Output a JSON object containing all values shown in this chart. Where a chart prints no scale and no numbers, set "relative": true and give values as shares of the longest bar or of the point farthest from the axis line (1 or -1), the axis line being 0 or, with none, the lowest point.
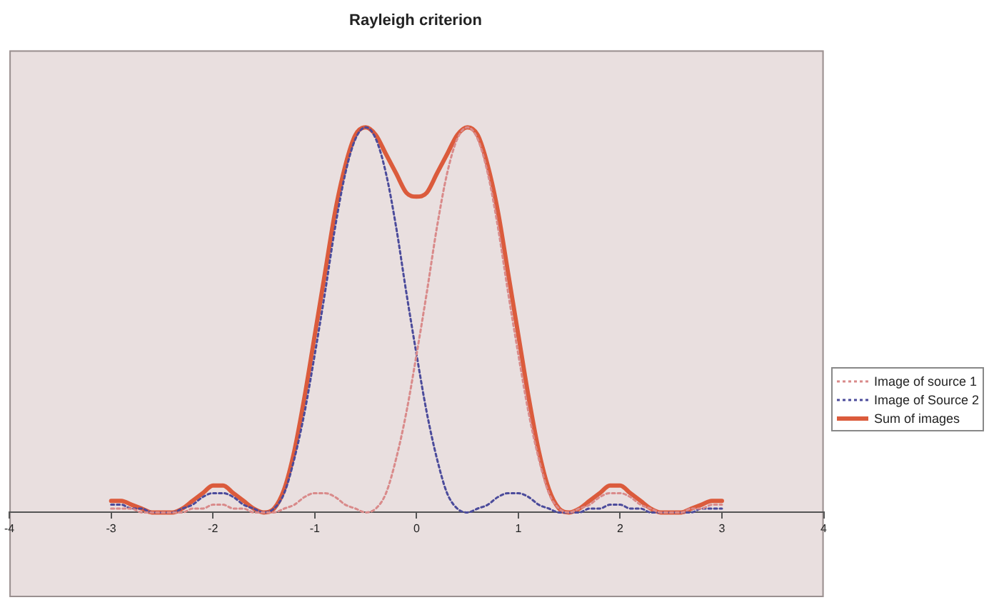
{
  "chart_data": {
    "type": "line",
    "title": "Rayleigh criterion",
    "relative": true,
    "x": [
      -3,
      -2.9,
      -2.8,
      -2.7,
      -2.6,
      -2.5,
      -2.4,
      -2.3,
      -2.2,
      -2.1,
      -2,
      -1.9,
      -1.8,
      -1.7,
      -1.6,
      -1.5,
      -1.4,
      -1.3,
      -1.2,
      -1.1,
      -1,
      -0.9,
      -0.8,
      -0.7,
      -0.6,
      -0.5,
      -0.4,
      -0.3,
      -0.2,
      -0.1,
      0,
      0.1,
      0.2,
      0.3,
      0.4,
      0.5,
      0.6,
      0.7,
      0.8,
      0.9,
      1,
      1.1,
      1.2,
      1.3,
      1.4,
      1.5,
      1.6,
      1.7,
      1.8,
      1.9,
      2,
      2.1,
      2.2,
      2.3,
      2.4,
      2.5,
      2.6,
      2.7,
      2.8,
      2.9,
      3
    ],
    "xlim": [
      -4,
      4
    ],
    "xticks": [
      -4,
      -3,
      -2,
      -1,
      0,
      1,
      2,
      3,
      4
    ],
    "grid": false,
    "legend": "right",
    "marker": "none",
    "series": [
      {
        "name": "Image of source 1",
        "color": "#d98a8a",
        "line_style": "dotted",
        "values": [
          0.01,
          0.01,
          0.01,
          0,
          0,
          0,
          0,
          0,
          0.01,
          0.01,
          0.02,
          0.02,
          0.01,
          0.01,
          0,
          0,
          0,
          0.01,
          0.02,
          0.04,
          0.05,
          0.05,
          0.04,
          0.02,
          0.01,
          0,
          0.01,
          0.05,
          0.14,
          0.26,
          0.41,
          0.57,
          0.74,
          0.88,
          0.97,
          1,
          0.97,
          0.88,
          0.74,
          0.57,
          0.41,
          0.26,
          0.14,
          0.05,
          0.01,
          0,
          0.01,
          0.02,
          0.04,
          0.05,
          0.05,
          0.04,
          0.02,
          0.01,
          0,
          0,
          0,
          0.01,
          0.01,
          0.02,
          0.02
        ]
      },
      {
        "name": "Image of Source 2",
        "color": "#4b4b9b",
        "line_style": "dotted",
        "values": [
          0.02,
          0.02,
          0.01,
          0.01,
          0,
          0,
          0,
          0.01,
          0.02,
          0.04,
          0.05,
          0.05,
          0.04,
          0.02,
          0.01,
          0,
          0.01,
          0.05,
          0.14,
          0.26,
          0.41,
          0.57,
          0.74,
          0.88,
          0.97,
          1,
          0.97,
          0.88,
          0.74,
          0.57,
          0.41,
          0.26,
          0.14,
          0.05,
          0.01,
          0,
          0.01,
          0.02,
          0.04,
          0.05,
          0.05,
          0.04,
          0.02,
          0.01,
          0,
          0,
          0,
          0.01,
          0.01,
          0.02,
          0.02,
          0.01,
          0.01,
          0,
          0,
          0,
          0,
          0,
          0.01,
          0.01,
          0.01
        ]
      },
      {
        "name": "Sum of images",
        "color": "#db5b3c",
        "line_style": "solid",
        "values": [
          0.03,
          0.03,
          0.02,
          0.01,
          0,
          0,
          0,
          0.01,
          0.03,
          0.05,
          0.07,
          0.07,
          0.05,
          0.03,
          0.01,
          0,
          0.01,
          0.06,
          0.16,
          0.3,
          0.46,
          0.62,
          0.78,
          0.9,
          0.98,
          1,
          0.98,
          0.93,
          0.88,
          0.83,
          0.82,
          0.83,
          0.88,
          0.93,
          0.98,
          1,
          0.98,
          0.9,
          0.78,
          0.62,
          0.46,
          0.3,
          0.16,
          0.06,
          0.01,
          0,
          0.01,
          0.03,
          0.05,
          0.07,
          0.07,
          0.05,
          0.03,
          0.01,
          0,
          0,
          0,
          0.01,
          0.02,
          0.03,
          0.03
        ]
      }
    ]
  }
}
